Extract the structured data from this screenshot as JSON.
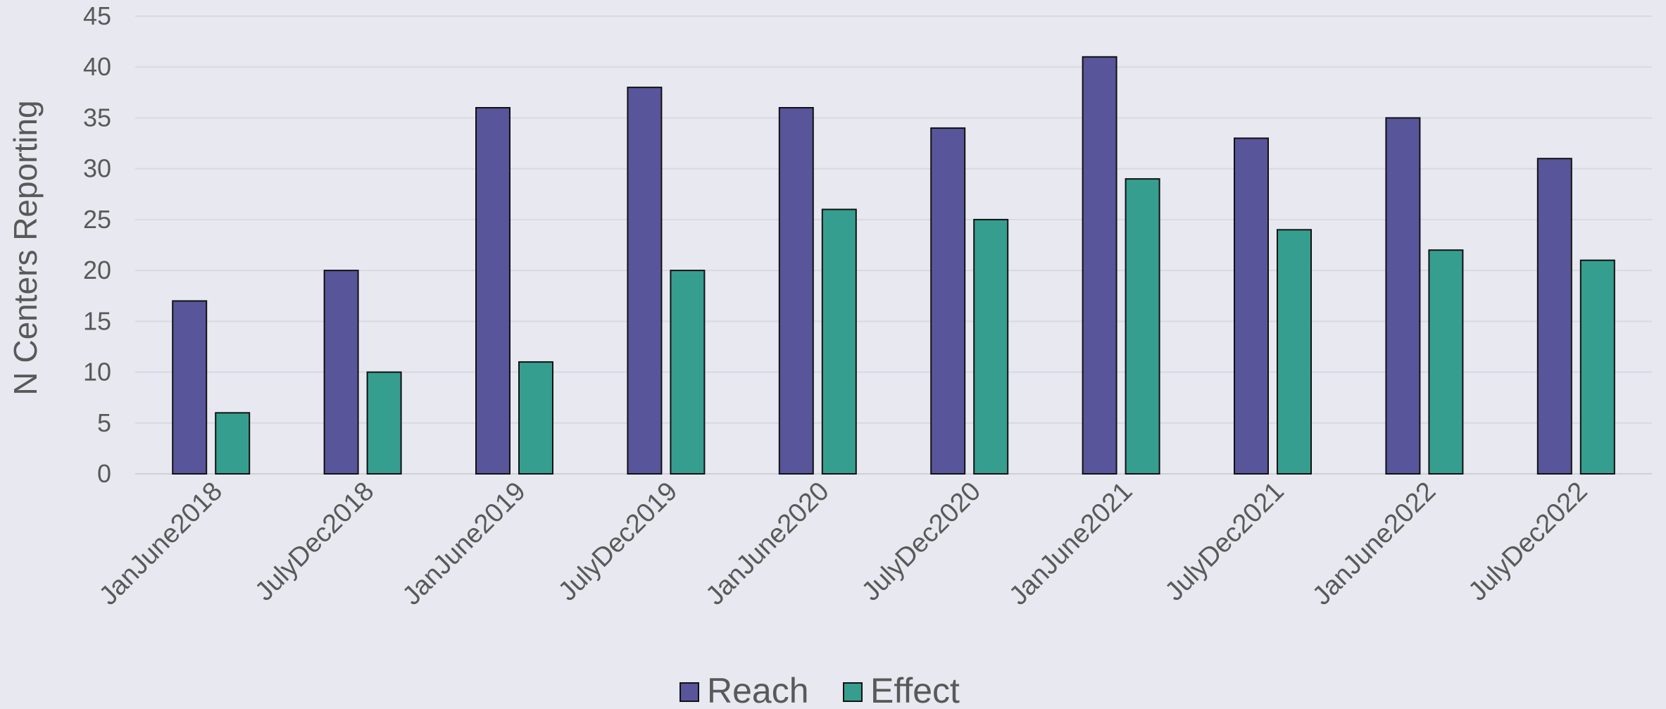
{
  "chart_data": {
    "type": "bar",
    "title": "",
    "ylabel": "N Centers Reporting",
    "xlabel": "",
    "categories": [
      "JanJune2018",
      "JulyDec2018",
      "JanJune2019",
      "JulyDec2019",
      "JanJune2020",
      "JulyDec2020",
      "JanJune2021",
      "JulyDec2021",
      "JanJune2022",
      "JulyDec2022"
    ],
    "series": [
      {
        "name": "Reach",
        "color": "#58559a",
        "values": [
          17,
          20,
          36,
          38,
          36,
          34,
          41,
          33,
          35,
          31
        ]
      },
      {
        "name": "Effect",
        "color": "#369e8f",
        "values": [
          6,
          10,
          11,
          20,
          26,
          25,
          29,
          24,
          22,
          21
        ]
      }
    ],
    "ylim": [
      0,
      45
    ],
    "yticks": [
      0,
      5,
      10,
      15,
      20,
      25,
      30,
      35,
      40,
      45
    ],
    "grid": true,
    "legend_position": "bottom"
  }
}
